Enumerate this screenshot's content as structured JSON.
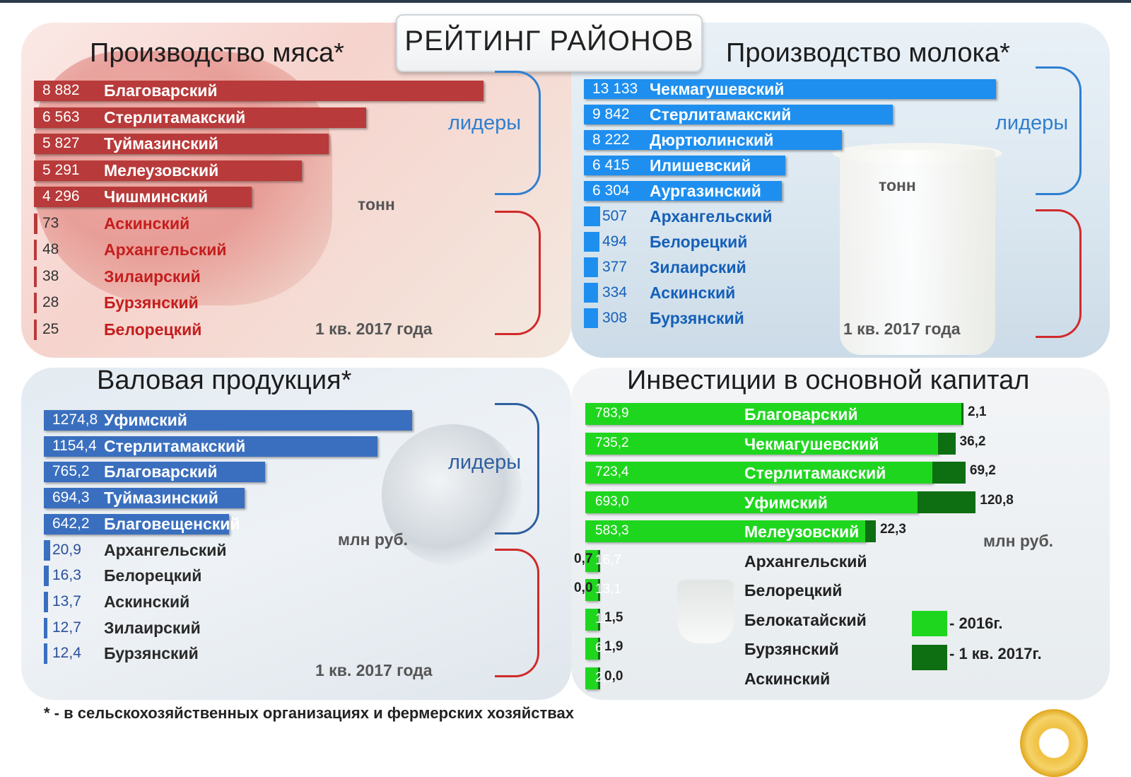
{
  "header": {
    "title": "РЕЙТИНГ РАЙОНОВ"
  },
  "labels": {
    "leaders": "лидеры",
    "unit_tons": "тонн",
    "unit_rub": "млн  руб.",
    "period": "1 кв. 2017 года"
  },
  "footnote": "* - в сельскохозяйственных организациях и фермерских хозяйствах",
  "colors": {
    "meat": "#b83a3a",
    "meat_text": "#c41e1e",
    "milk": "#1e8fef",
    "milk_text": "#1560b8",
    "gross": "#3a6fbf",
    "gross_text": "#2a4f9a",
    "inv_2016": "#1fd61f",
    "inv_2017": "#0e6e12",
    "leaders_brace": "#2f7fd0",
    "outsiders_brace": "#d02a2a"
  },
  "chart_data": [
    {
      "id": "meat",
      "type": "bar",
      "title": "Производство мяса*",
      "unit": "тонн",
      "period": "1 кв. 2017 года",
      "categories": [
        "Благоварский",
        "Стерлитамакский",
        "Туймазинский",
        "Мелеузовский",
        "Чишминский",
        "Аскинский",
        "Архангельский",
        "Зилаирский",
        "Бурзянский",
        "Белорецкий"
      ],
      "labels": [
        "8 882",
        "6 563",
        "5 827",
        "5 291",
        "4 296",
        "73",
        "48",
        "38",
        "28",
        "25"
      ],
      "values": [
        8882,
        6563,
        5827,
        5291,
        4296,
        73,
        48,
        38,
        28,
        25
      ],
      "xlim": [
        0,
        8882
      ]
    },
    {
      "id": "milk",
      "type": "bar",
      "title": "Производство молока*",
      "unit": "тонн",
      "period": "1 кв. 2017 года",
      "categories": [
        "Чекмагушевский",
        "Стерлитамакский",
        "Дюртюлинский",
        "Илишевский",
        "Аургазинский",
        "Архангельский",
        "Белорецкий",
        "Зилаирский",
        "Аскинский",
        "Бурзянский"
      ],
      "labels": [
        "13 133",
        "9 842",
        "8 222",
        "6 415",
        "6 304",
        "507",
        "494",
        "377",
        "334",
        "308"
      ],
      "values": [
        13133,
        9842,
        8222,
        6415,
        6304,
        507,
        494,
        377,
        334,
        308
      ],
      "xlim": [
        0,
        13133
      ]
    },
    {
      "id": "gross",
      "type": "bar",
      "title": "Валовая продукция*",
      "unit": "млн  руб.",
      "period": "1 кв. 2017 года",
      "categories": [
        "Уфимский",
        "Стерлитамакский",
        "Благоварский",
        "Туймазинский",
        "Благовещенский",
        "Архангельский",
        "Белорецкий",
        "Аскинский",
        "Зилаирский",
        "Бурзянский"
      ],
      "labels": [
        "1274,8",
        "1154,4",
        "765,2",
        "694,3",
        "642,2",
        "20,9",
        "16,3",
        "13,7",
        "12,7",
        "12,4"
      ],
      "values": [
        1274.8,
        1154.4,
        765.2,
        694.3,
        642.2,
        20.9,
        16.3,
        13.7,
        12.7,
        12.4
      ],
      "xlim": [
        0,
        1274.8
      ]
    },
    {
      "id": "investments",
      "type": "bar",
      "title": "Инвестиции в основной капитал",
      "unit": "млн  руб.",
      "categories": [
        "Благоварский",
        "Чекмагушевский",
        "Стерлитамакский",
        "Уфимский",
        "Мелеузовский",
        "Архангельский",
        "Белорецкий",
        "Белокатайский",
        "Бурзянский",
        "Аскинский"
      ],
      "series": [
        {
          "name": "- 2016г.",
          "labels": [
            "783,9",
            "735,2",
            "723,4",
            "693,0",
            "583,3",
            "16,7",
            "13,1",
            "12,7",
            "6,9",
            "2,0"
          ],
          "values": [
            783.9,
            735.2,
            723.4,
            693.0,
            583.3,
            16.7,
            13.1,
            12.7,
            6.9,
            2.0
          ]
        },
        {
          "name": "- 1 кв. 2017г.",
          "labels": [
            "2,1",
            "36,2",
            "69,2",
            "120,8",
            "22,3",
            "0,7",
            "0,0",
            "1,5",
            "1,9",
            "0,0"
          ],
          "values": [
            2.1,
            36.2,
            69.2,
            120.8,
            22.3,
            0.7,
            0.0,
            1.5,
            1.9,
            0.0
          ]
        }
      ],
      "xlim": [
        0,
        813.8
      ]
    }
  ]
}
